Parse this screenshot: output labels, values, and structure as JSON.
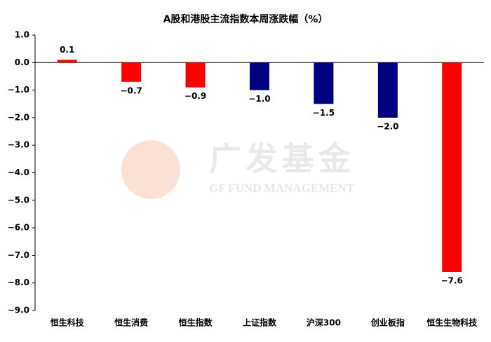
{
  "chart_data": {
    "type": "bar",
    "title": "A股和港股主流指数本周涨跌幅（%）",
    "categories": [
      "恒生科技",
      "恒生消费",
      "恒生指数",
      "上证指数",
      "沪深300",
      "创业板指",
      "恒生生物科技"
    ],
    "values": [
      0.1,
      -0.7,
      -0.9,
      -1.0,
      -1.5,
      -2.0,
      -7.6
    ],
    "value_labels": [
      "0.1",
      "−0.7",
      "−0.9",
      "−1.0",
      "−1.5",
      "−2.0",
      "−7.6"
    ],
    "colors": [
      "#ff0000",
      "#ff0000",
      "#ff0000",
      "#000080",
      "#000080",
      "#000080",
      "#ff0000"
    ],
    "ylim": [
      -9,
      1
    ],
    "yticks": [
      {
        "value": 1,
        "label": "1.0"
      },
      {
        "value": 0,
        "label": "0.0"
      },
      {
        "value": -1,
        "label": "−1.0"
      },
      {
        "value": -2,
        "label": "−2.0"
      },
      {
        "value": -3,
        "label": "−3.0"
      },
      {
        "value": -4,
        "label": "−4.0"
      },
      {
        "value": -5,
        "label": "−5.0"
      },
      {
        "value": -6,
        "label": "−6.0"
      },
      {
        "value": -7,
        "label": "−7.0"
      },
      {
        "value": -8,
        "label": "−8.0"
      },
      {
        "value": -9,
        "label": "−9.0"
      }
    ],
    "grid": false,
    "watermark": {
      "logo_text": "广发基金",
      "sub_text": "GF FUND MANAGEMENT"
    }
  }
}
